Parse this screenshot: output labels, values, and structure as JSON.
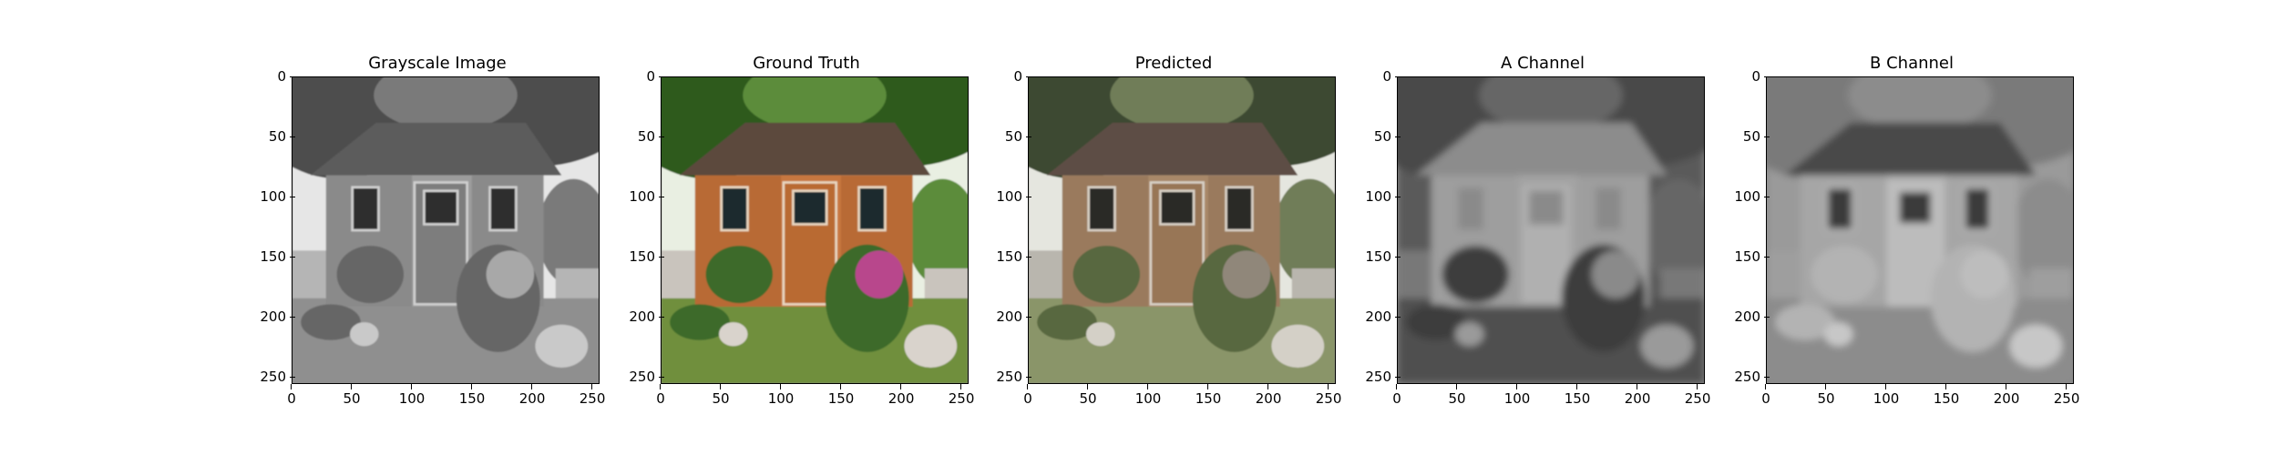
{
  "figure": {
    "panels": [
      {
        "title": "Grayscale Image",
        "style": "grayscale"
      },
      {
        "title": "Ground Truth",
        "style": "color"
      },
      {
        "title": "Predicted",
        "style": "muted"
      },
      {
        "title": "A Channel",
        "style": "a-channel"
      },
      {
        "title": "B Channel",
        "style": "b-channel"
      }
    ],
    "y_ticks": [
      "0",
      "50",
      "100",
      "150",
      "200",
      "250"
    ],
    "x_ticks": [
      "0",
      "50",
      "100",
      "150",
      "200",
      "250"
    ],
    "axis_range": [
      0,
      256
    ]
  }
}
